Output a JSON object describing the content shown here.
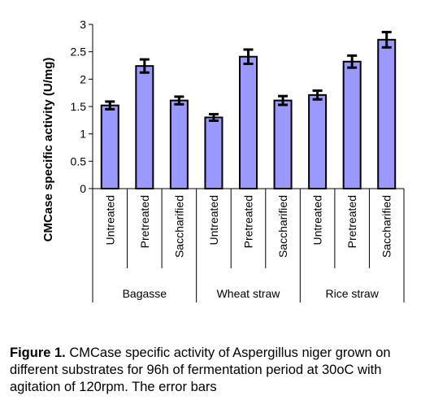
{
  "chart_data": {
    "type": "bar",
    "ylabel": "CMCase specific activity (U/mg)",
    "ylim": [
      0,
      3
    ],
    "yticks": [
      "0",
      "0.5",
      "1",
      "1.5",
      "2",
      "2.5",
      "3"
    ],
    "grid": false,
    "bar_color": "#9999ff",
    "groups": [
      "Bagasse",
      "Wheat straw",
      "Rice straw"
    ],
    "categories": [
      "Untreated",
      "Pretreated",
      "Saccharified",
      "Untreated",
      "Pretreated",
      "Saccharified",
      "Untreated",
      "Pretreated",
      "Saccharified"
    ],
    "values": [
      1.52,
      2.24,
      1.61,
      1.3,
      2.41,
      1.61,
      1.71,
      2.32,
      2.72
    ],
    "errors": [
      0.07,
      0.12,
      0.07,
      0.06,
      0.13,
      0.08,
      0.08,
      0.11,
      0.14
    ]
  },
  "caption": {
    "label": "Figure 1.",
    "text": " CMCase specific activity of Aspergillus niger grown on different substrates for 96h of fermentation period at 30oC with agitation of 120rpm. The error bars"
  }
}
